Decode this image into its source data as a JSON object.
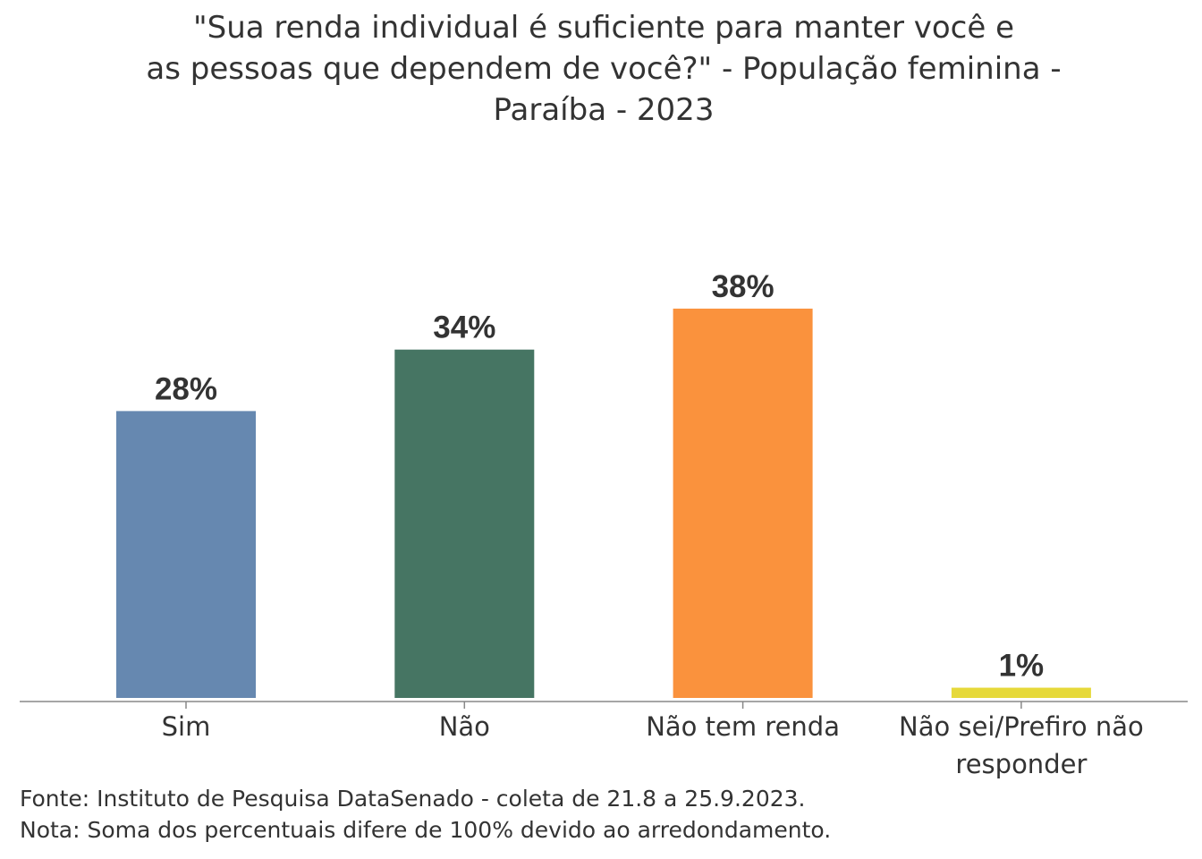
{
  "chart_data": {
    "type": "bar",
    "title_lines": [
      "\"Sua renda individual é suficiente para manter você e",
      "as pessoas que dependem de você?\" - População feminina -",
      "Paraíba - 2023"
    ],
    "categories": [
      [
        "Sim"
      ],
      [
        "Não"
      ],
      [
        "Não tem renda"
      ],
      [
        "Não sei/Prefiro não",
        "responder"
      ]
    ],
    "values": [
      28,
      34,
      38,
      1
    ],
    "value_labels": [
      "28%",
      "34%",
      "38%",
      "1%"
    ],
    "colors": [
      "#6688b0",
      "#467563",
      "#fa923d",
      "#e6d93a"
    ],
    "xlabel": "",
    "ylabel": "",
    "ylim": [
      0,
      40
    ],
    "grid": false
  },
  "footer": {
    "source": "Fonte: Instituto de Pesquisa DataSenado - coleta de 21.8 a 25.9.2023.",
    "note": "Nota: Soma dos percentuais difere de 100% devido ao arredondamento."
  }
}
